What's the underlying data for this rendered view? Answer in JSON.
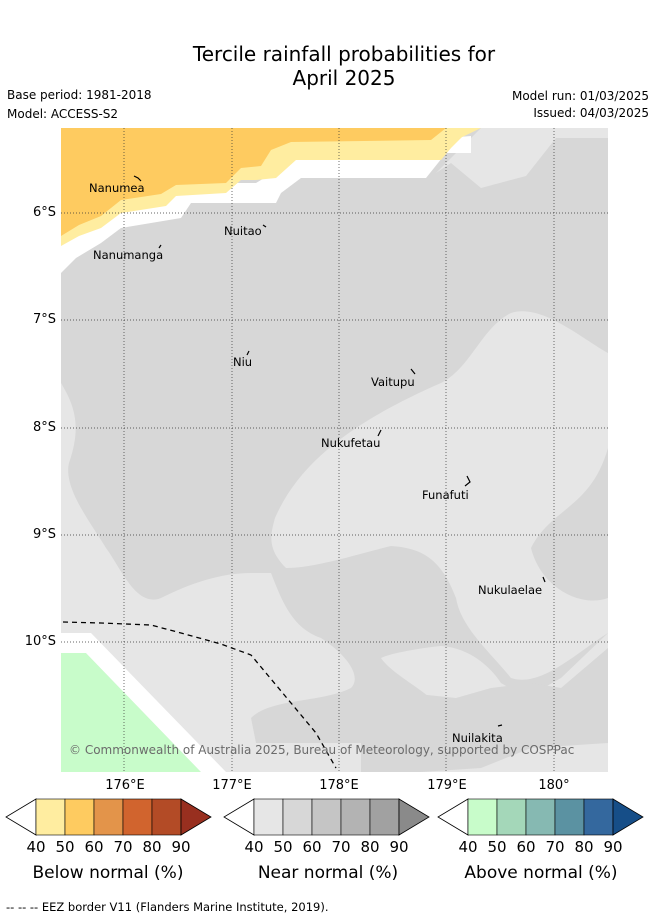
{
  "title_line1": "Tercile rainfall probabilities for",
  "title_line2": "April 2025",
  "base_period": "Base period: 1981-2018",
  "model": "Model: ACCESS-S2",
  "model_run": "Model run: 01/03/2025",
  "issued": "Issued: 04/03/2025",
  "lat_labels": [
    "6°S",
    "7°S",
    "8°S",
    "9°S",
    "10°S"
  ],
  "lon_labels": [
    "176°E",
    "177°E",
    "178°E",
    "179°E",
    "180°"
  ],
  "places": [
    "Nanumea",
    "Nuitao",
    "Nanumanga",
    "Niu",
    "Vaitupu",
    "Nukufetau",
    "Funafuti",
    "Nukulaelae",
    "Nuilakita"
  ],
  "credit": "© Commonwealth of Australia 2025, Bureau of Meteorology, supported by COSPPac",
  "colorbars": [
    {
      "title": "Below normal (%)",
      "ticks": [
        "40",
        "50",
        "60",
        "70",
        "80",
        "90"
      ],
      "colors": [
        "#ffeda0",
        "#fecb60",
        "#e3944a",
        "#d1642e",
        "#b34b26",
        "#982f1f"
      ]
    },
    {
      "title": "Near normal (%)",
      "ticks": [
        "40",
        "50",
        "60",
        "70",
        "80",
        "90"
      ],
      "colors": [
        "#e6e6e6",
        "#d7d7d7",
        "#c5c5c5",
        "#b3b3b3",
        "#a1a1a1",
        "#8a8a8a"
      ]
    },
    {
      "title": "Above normal (%)",
      "ticks": [
        "40",
        "50",
        "60",
        "70",
        "80",
        "90"
      ],
      "colors": [
        "#c8fcca",
        "#a4d7b9",
        "#86b9b2",
        "#5b92a2",
        "#34689e",
        "#164e88"
      ]
    }
  ],
  "footnote": "-- -- -- EEZ border V11 (Flanders Marine Institute, 2019)."
}
